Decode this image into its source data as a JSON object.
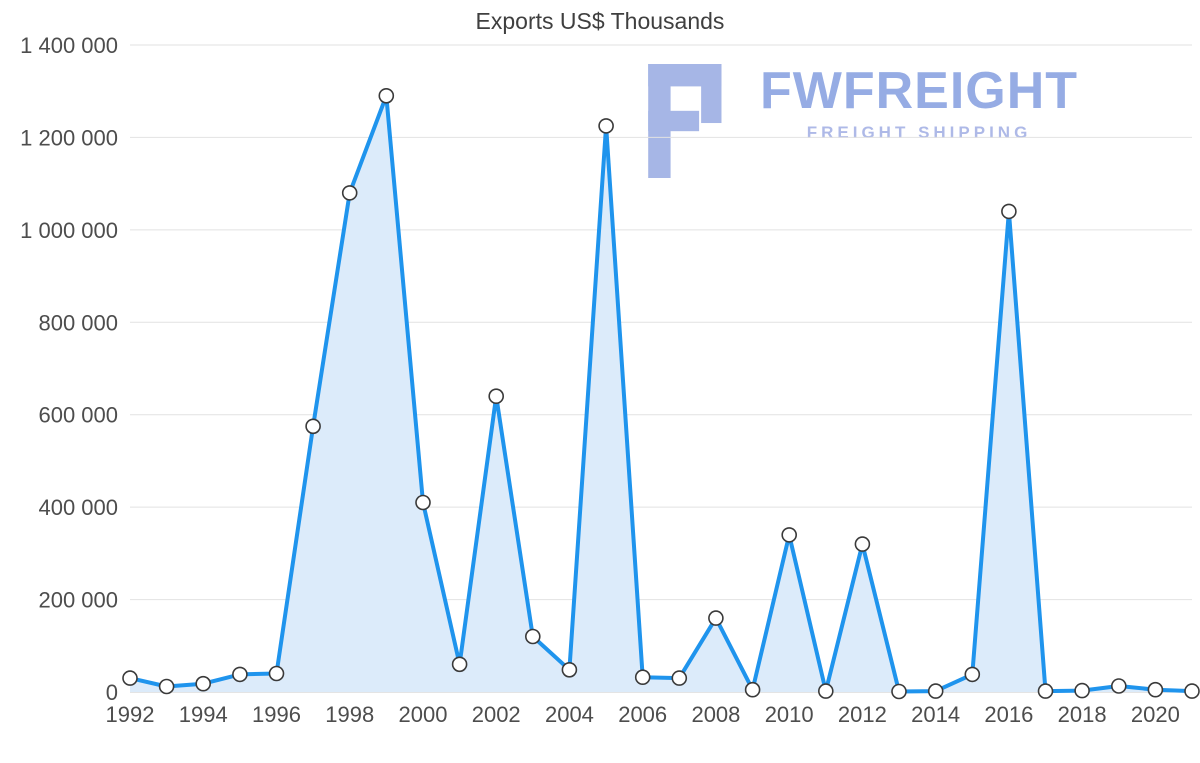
{
  "title": "Exports US$ Thousands",
  "watermark": {
    "brand": "FWFREIGHT",
    "tagline": "FREIGHT SHIPPING"
  },
  "colors": {
    "line": "#1f94ed",
    "fill": "#dcebfa",
    "grid": "#e2e2e2",
    "zero_line": "#c8c8c8",
    "axis_text": "#4d4d4d",
    "marker_fill": "#ffffff",
    "marker_stroke": "#3a3a3a",
    "watermark_icon": "#9fb0e4",
    "watermark_brand": "#8ea6e2",
    "watermark_tagline": "#a8b4e6"
  },
  "chart_data": {
    "type": "area",
    "title": "Exports US$ Thousands",
    "x": [
      1992,
      1993,
      1994,
      1995,
      1996,
      1997,
      1998,
      1999,
      2000,
      2001,
      2002,
      2003,
      2004,
      2005,
      2006,
      2007,
      2008,
      2009,
      2010,
      2011,
      2012,
      2013,
      2014,
      2015,
      2016,
      2017,
      2018,
      2019,
      2020,
      2021
    ],
    "values": [
      30000,
      12000,
      18000,
      38000,
      40000,
      575000,
      1080000,
      1290000,
      410000,
      60000,
      640000,
      120000,
      48000,
      1225000,
      32000,
      30000,
      160000,
      5000,
      340000,
      2000,
      320000,
      1000,
      2000,
      38000,
      1040000,
      2000,
      3000,
      13000,
      5000,
      2000
    ],
    "ylim": [
      0,
      1400000
    ],
    "ytick_step": 200000,
    "ytick_labels": [
      "0",
      "200 000",
      "400 000",
      "600 000",
      "800 000",
      "1 000 000",
      "1 200 000",
      "1 400 000"
    ],
    "xticks": [
      1992,
      1994,
      1996,
      1998,
      2000,
      2002,
      2004,
      2006,
      2008,
      2010,
      2012,
      2014,
      2016,
      2018,
      2020
    ],
    "xlabel": "",
    "ylabel": "",
    "grid": true,
    "legend": "none"
  }
}
